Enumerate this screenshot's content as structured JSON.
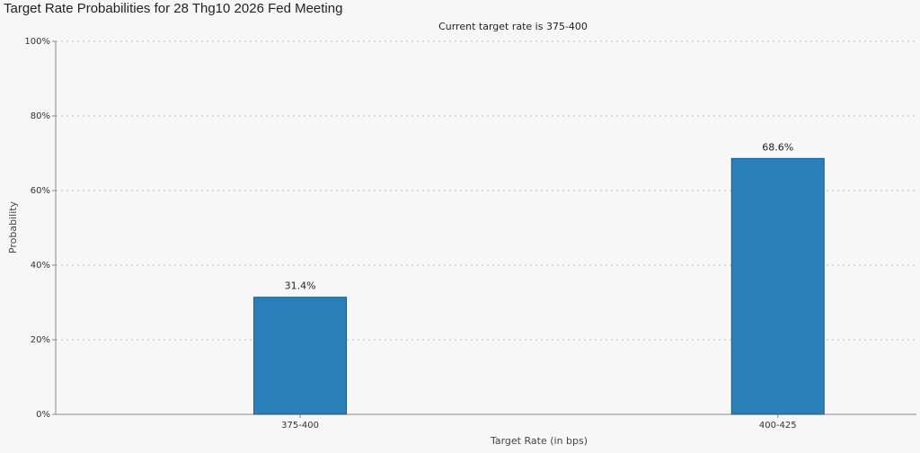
{
  "chart_data": {
    "type": "bar",
    "title": "Target Rate Probabilities for 28 Thg10 2026 Fed Meeting",
    "subtitle": "Current target rate is 375-400",
    "x_label": "Target Rate (in bps)",
    "y_label": "Probability",
    "categories": [
      "375-400",
      "400-425"
    ],
    "values": [
      31.4,
      68.6
    ],
    "value_labels": [
      "31.4%",
      "68.6%"
    ],
    "color": "#2a7fb8",
    "ylim": [
      0,
      100
    ],
    "yticks": [
      {
        "value": 0,
        "label": "0%"
      },
      {
        "value": 20,
        "label": "20%"
      },
      {
        "value": 40,
        "label": "40%"
      },
      {
        "value": 60,
        "label": "60%"
      },
      {
        "value": 80,
        "label": "80%"
      },
      {
        "value": 100,
        "label": "100%"
      }
    ],
    "grid": true
  }
}
